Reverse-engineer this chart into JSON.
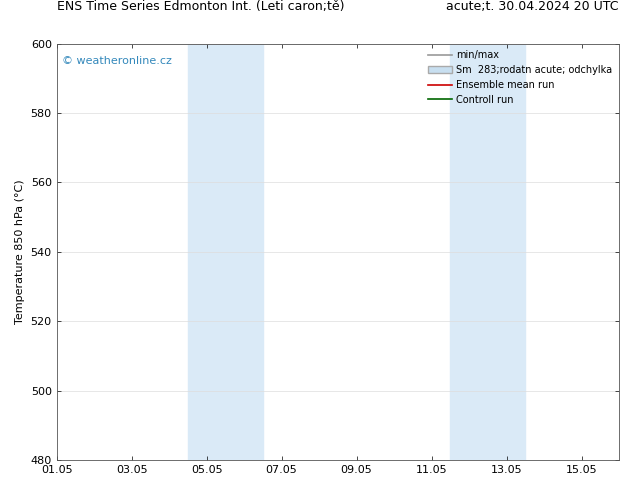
{
  "title_left": "ENS Time Series Edmonton Int. (Leti caron;tě)",
  "title_right": "acute;t. 30.04.2024 20 UTC",
  "ylabel": "Temperature 850 hPa (°C)",
  "ylim": [
    480,
    600
  ],
  "yticks": [
    480,
    500,
    520,
    540,
    560,
    580,
    600
  ],
  "xtick_labels": [
    "01.05",
    "03.05",
    "05.05",
    "07.05",
    "09.05",
    "11.05",
    "13.05",
    "15.05"
  ],
  "xtick_positions": [
    0,
    2,
    4,
    6,
    8,
    10,
    12,
    14
  ],
  "xlim": [
    0,
    15
  ],
  "blue_bands": [
    {
      "xstart": 3.5,
      "xend": 5.5
    },
    {
      "xstart": 10.5,
      "xend": 12.5
    }
  ],
  "blue_band_color": "#daeaf7",
  "watermark": "© weatheronline.cz",
  "watermark_color": "#3388bb",
  "legend_entries": [
    {
      "label": "min/max",
      "color": "#999999",
      "lw": 1.2,
      "type": "line"
    },
    {
      "label": "Sm  283;rodatn acute; odchylka",
      "color": "#c8dff0",
      "edgecolor": "#aaaaaa",
      "type": "fill"
    },
    {
      "label": "Ensemble mean run",
      "color": "#cc0000",
      "lw": 1.2,
      "type": "line"
    },
    {
      "label": "Controll run",
      "color": "#006600",
      "lw": 1.2,
      "type": "line"
    }
  ],
  "bg_color": "#ffffff",
  "grid_color": "#dddddd",
  "title_fontsize": 9,
  "axis_fontsize": 8,
  "tick_fontsize": 8,
  "legend_fontsize": 7,
  "watermark_fontsize": 8
}
